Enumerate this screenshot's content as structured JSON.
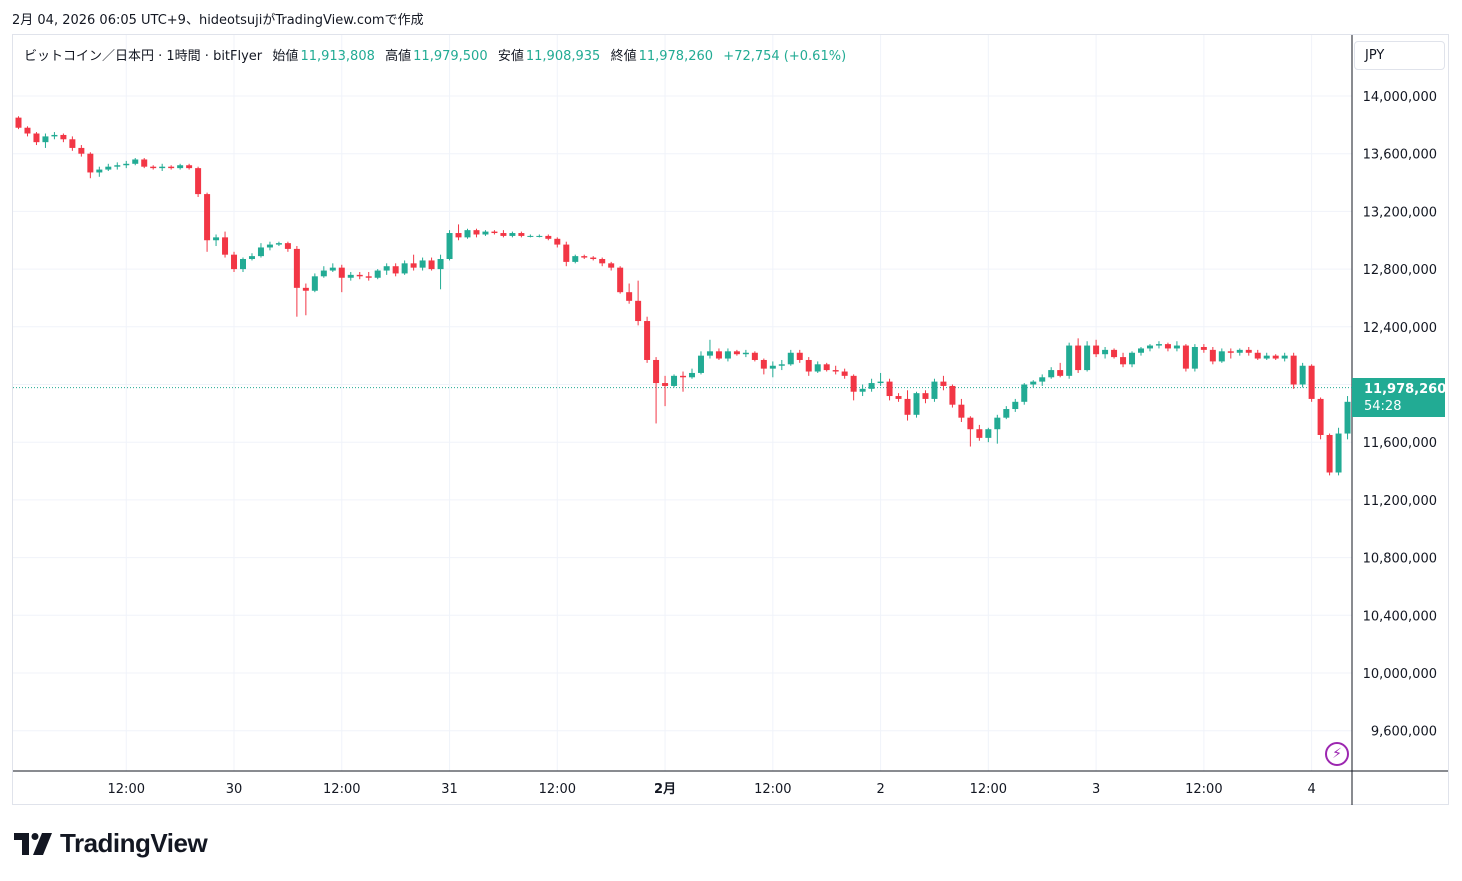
{
  "header": {
    "caption": "2月 04, 2026 06:05 UTC+9、hideotsujiがTradingView.comで作成"
  },
  "legend": {
    "symbol": "ビットコイン／日本円 · 1時間 · bitFlyer",
    "open_label": "始値",
    "open_value": "11,913,808",
    "high_label": "高値",
    "high_value": "11,979,500",
    "low_label": "安値",
    "low_value": "11,908,935",
    "close_label": "終値",
    "close_value": "11,978,260",
    "change": "+72,754 (+0.61%)"
  },
  "currency_button": "JPY",
  "last_price": {
    "price": "11,978,260",
    "countdown": "54:28"
  },
  "brand": {
    "name": "TradingView"
  },
  "colors": {
    "up": "#22ab94",
    "down": "#f23645",
    "grid": "#f0f3fa",
    "axis_text": "#131722",
    "last_line": "#22ab94",
    "alert": "#9c27b0"
  },
  "icons": {
    "alert": "lightning-icon",
    "logo": "tradingview-logo-icon"
  },
  "chart_data": {
    "type": "candlestick",
    "title": "ビットコイン／日本円 · 1時間 · bitFlyer",
    "ylim": [
      9300000,
      14600000
    ],
    "y_ticks": [
      14000000,
      13600000,
      13200000,
      12800000,
      12400000,
      12000000,
      11600000,
      11200000,
      10800000,
      10400000,
      10000000,
      9600000
    ],
    "y_tick_labels": [
      "14,000,000",
      "13,600,000",
      "13,200,000",
      "12,800,000",
      "12,400,000",
      "12,000,000",
      "11,600,000",
      "11,200,000",
      "10,800,000",
      "10,400,000",
      "10,000,000",
      "9,600,000"
    ],
    "x_ticks": [
      {
        "bar": 12,
        "label": "12:00",
        "bold": false
      },
      {
        "bar": 24,
        "label": "30",
        "bold": false
      },
      {
        "bar": 36,
        "label": "12:00",
        "bold": false
      },
      {
        "bar": 48,
        "label": "31",
        "bold": false
      },
      {
        "bar": 60,
        "label": "12:00",
        "bold": false
      },
      {
        "bar": 72,
        "label": "2月",
        "bold": true
      },
      {
        "bar": 84,
        "label": "12:00",
        "bold": false
      },
      {
        "bar": 96,
        "label": "2",
        "bold": false
      },
      {
        "bar": 108,
        "label": "12:00",
        "bold": false
      },
      {
        "bar": 120,
        "label": "3",
        "bold": false
      },
      {
        "bar": 132,
        "label": "12:00",
        "bold": false
      },
      {
        "bar": 144,
        "label": "4",
        "bold": false
      }
    ],
    "last_price": 11978260,
    "grid": true,
    "candles": [
      [
        13850000,
        13860000,
        13770000,
        13780000
      ],
      [
        13780000,
        13790000,
        13720000,
        13740000
      ],
      [
        13740000,
        13750000,
        13660000,
        13680000
      ],
      [
        13680000,
        13740000,
        13640000,
        13720000
      ],
      [
        13720000,
        13750000,
        13700000,
        13730000
      ],
      [
        13730000,
        13740000,
        13680000,
        13700000
      ],
      [
        13700000,
        13720000,
        13620000,
        13640000
      ],
      [
        13640000,
        13660000,
        13580000,
        13600000
      ],
      [
        13600000,
        13610000,
        13430000,
        13470000
      ],
      [
        13470000,
        13510000,
        13440000,
        13490000
      ],
      [
        13490000,
        13530000,
        13480000,
        13510000
      ],
      [
        13510000,
        13540000,
        13490000,
        13520000
      ],
      [
        13520000,
        13550000,
        13500000,
        13530000
      ],
      [
        13530000,
        13570000,
        13520000,
        13560000
      ],
      [
        13560000,
        13570000,
        13500000,
        13510000
      ],
      [
        13510000,
        13520000,
        13490000,
        13500000
      ],
      [
        13500000,
        13530000,
        13480000,
        13510000
      ],
      [
        13510000,
        13520000,
        13490000,
        13500000
      ],
      [
        13500000,
        13530000,
        13490000,
        13520000
      ],
      [
        13520000,
        13530000,
        13490000,
        13500000
      ],
      [
        13500000,
        13510000,
        13300000,
        13320000
      ],
      [
        13320000,
        13330000,
        12920000,
        13000000
      ],
      [
        13000000,
        13040000,
        12960000,
        13020000
      ],
      [
        13020000,
        13060000,
        12880000,
        12900000
      ],
      [
        12900000,
        12920000,
        12780000,
        12800000
      ],
      [
        12800000,
        12880000,
        12780000,
        12870000
      ],
      [
        12870000,
        12910000,
        12860000,
        12890000
      ],
      [
        12890000,
        12980000,
        12880000,
        12950000
      ],
      [
        12950000,
        12990000,
        12930000,
        12970000
      ],
      [
        12970000,
        12990000,
        12960000,
        12980000
      ],
      [
        12980000,
        12990000,
        12920000,
        12940000
      ],
      [
        12940000,
        12960000,
        12470000,
        12670000
      ],
      [
        12670000,
        12700000,
        12480000,
        12650000
      ],
      [
        12650000,
        12770000,
        12640000,
        12750000
      ],
      [
        12750000,
        12820000,
        12740000,
        12790000
      ],
      [
        12790000,
        12840000,
        12780000,
        12810000
      ],
      [
        12810000,
        12830000,
        12640000,
        12740000
      ],
      [
        12740000,
        12780000,
        12720000,
        12760000
      ],
      [
        12760000,
        12780000,
        12730000,
        12750000
      ],
      [
        12750000,
        12780000,
        12720000,
        12740000
      ],
      [
        12740000,
        12800000,
        12730000,
        12790000
      ],
      [
        12790000,
        12840000,
        12760000,
        12820000
      ],
      [
        12820000,
        12840000,
        12750000,
        12770000
      ],
      [
        12770000,
        12860000,
        12760000,
        12840000
      ],
      [
        12840000,
        12900000,
        12790000,
        12810000
      ],
      [
        12810000,
        12880000,
        12790000,
        12860000
      ],
      [
        12860000,
        12880000,
        12790000,
        12800000
      ],
      [
        12800000,
        12900000,
        12660000,
        12870000
      ],
      [
        12870000,
        13070000,
        12860000,
        13050000
      ],
      [
        13050000,
        13110000,
        13000000,
        13020000
      ],
      [
        13020000,
        13080000,
        13010000,
        13070000
      ],
      [
        13070000,
        13080000,
        13020000,
        13040000
      ],
      [
        13040000,
        13070000,
        13030000,
        13060000
      ],
      [
        13060000,
        13070000,
        13040000,
        13050000
      ],
      [
        13050000,
        13070000,
        13020000,
        13030000
      ],
      [
        13030000,
        13060000,
        13020000,
        13050000
      ],
      [
        13050000,
        13060000,
        13020000,
        13030000
      ],
      [
        13030000,
        13040000,
        13020000,
        13030000
      ],
      [
        13030000,
        13040000,
        13020000,
        13030000
      ],
      [
        13030000,
        13040000,
        13000000,
        13010000
      ],
      [
        13010000,
        13020000,
        12950000,
        12970000
      ],
      [
        12970000,
        12990000,
        12820000,
        12850000
      ],
      [
        12850000,
        12900000,
        12840000,
        12890000
      ],
      [
        12890000,
        12900000,
        12870000,
        12880000
      ],
      [
        12880000,
        12890000,
        12860000,
        12870000
      ],
      [
        12870000,
        12880000,
        12820000,
        12840000
      ],
      [
        12840000,
        12850000,
        12790000,
        12810000
      ],
      [
        12810000,
        12820000,
        12630000,
        12640000
      ],
      [
        12640000,
        12700000,
        12560000,
        12580000
      ],
      [
        12580000,
        12720000,
        12410000,
        12440000
      ],
      [
        12440000,
        12470000,
        12150000,
        12170000
      ],
      [
        12170000,
        12190000,
        11730000,
        12010000
      ],
      [
        12010000,
        12060000,
        11850000,
        11990000
      ],
      [
        11990000,
        12070000,
        11980000,
        12060000
      ],
      [
        12060000,
        12090000,
        11950000,
        12050000
      ],
      [
        12050000,
        12110000,
        12040000,
        12080000
      ],
      [
        12080000,
        12230000,
        12070000,
        12200000
      ],
      [
        12200000,
        12310000,
        12180000,
        12230000
      ],
      [
        12230000,
        12250000,
        12170000,
        12180000
      ],
      [
        12180000,
        12250000,
        12160000,
        12230000
      ],
      [
        12230000,
        12240000,
        12200000,
        12210000
      ],
      [
        12210000,
        12240000,
        12190000,
        12220000
      ],
      [
        12220000,
        12230000,
        12160000,
        12170000
      ],
      [
        12170000,
        12180000,
        12070000,
        12110000
      ],
      [
        12110000,
        12160000,
        12050000,
        12130000
      ],
      [
        12130000,
        12170000,
        12100000,
        12140000
      ],
      [
        12140000,
        12240000,
        12130000,
        12220000
      ],
      [
        12220000,
        12240000,
        12150000,
        12170000
      ],
      [
        12170000,
        12190000,
        12060000,
        12090000
      ],
      [
        12090000,
        12160000,
        12080000,
        12140000
      ],
      [
        12140000,
        12150000,
        12090000,
        12100000
      ],
      [
        12100000,
        12130000,
        12070000,
        12090000
      ],
      [
        12090000,
        12110000,
        12040000,
        12060000
      ],
      [
        12060000,
        12070000,
        11890000,
        11950000
      ],
      [
        11950000,
        12000000,
        11920000,
        11970000
      ],
      [
        11970000,
        12040000,
        11950000,
        12010000
      ],
      [
        12010000,
        12080000,
        11990000,
        12020000
      ],
      [
        12020000,
        12040000,
        11890000,
        11920000
      ],
      [
        11920000,
        11940000,
        11880000,
        11900000
      ],
      [
        11900000,
        11960000,
        11750000,
        11790000
      ],
      [
        11790000,
        11950000,
        11770000,
        11940000
      ],
      [
        11940000,
        11960000,
        11870000,
        11900000
      ],
      [
        11900000,
        12040000,
        11880000,
        12020000
      ],
      [
        12020000,
        12060000,
        11960000,
        11990000
      ],
      [
        11990000,
        12000000,
        11840000,
        11860000
      ],
      [
        11860000,
        11900000,
        11740000,
        11770000
      ],
      [
        11770000,
        11780000,
        11570000,
        11690000
      ],
      [
        11690000,
        11720000,
        11610000,
        11630000
      ],
      [
        11630000,
        11700000,
        11600000,
        11690000
      ],
      [
        11690000,
        11790000,
        11590000,
        11770000
      ],
      [
        11770000,
        11850000,
        11760000,
        11830000
      ],
      [
        11830000,
        11900000,
        11810000,
        11880000
      ],
      [
        11880000,
        12010000,
        11860000,
        12000000
      ],
      [
        12000000,
        12030000,
        11980000,
        12020000
      ],
      [
        12020000,
        12070000,
        11990000,
        12050000
      ],
      [
        12050000,
        12120000,
        12040000,
        12100000
      ],
      [
        12100000,
        12150000,
        12050000,
        12060000
      ],
      [
        12060000,
        12290000,
        12040000,
        12270000
      ],
      [
        12270000,
        12320000,
        12080000,
        12100000
      ],
      [
        12100000,
        12300000,
        12090000,
        12270000
      ],
      [
        12270000,
        12310000,
        12190000,
        12210000
      ],
      [
        12210000,
        12260000,
        12180000,
        12240000
      ],
      [
        12240000,
        12250000,
        12180000,
        12190000
      ],
      [
        12190000,
        12220000,
        12120000,
        12140000
      ],
      [
        12140000,
        12230000,
        12120000,
        12220000
      ],
      [
        12220000,
        12260000,
        12200000,
        12250000
      ],
      [
        12250000,
        12280000,
        12230000,
        12270000
      ],
      [
        12270000,
        12300000,
        12250000,
        12280000
      ],
      [
        12280000,
        12290000,
        12230000,
        12250000
      ],
      [
        12250000,
        12300000,
        12230000,
        12270000
      ],
      [
        12270000,
        12280000,
        12090000,
        12110000
      ],
      [
        12110000,
        12280000,
        12090000,
        12260000
      ],
      [
        12260000,
        12280000,
        12220000,
        12240000
      ],
      [
        12240000,
        12260000,
        12140000,
        12160000
      ],
      [
        12160000,
        12250000,
        12150000,
        12230000
      ],
      [
        12230000,
        12250000,
        12180000,
        12220000
      ],
      [
        12220000,
        12250000,
        12200000,
        12240000
      ],
      [
        12240000,
        12260000,
        12200000,
        12220000
      ],
      [
        12220000,
        12240000,
        12170000,
        12180000
      ],
      [
        12180000,
        12220000,
        12170000,
        12200000
      ],
      [
        12200000,
        12210000,
        12170000,
        12180000
      ],
      [
        12180000,
        12220000,
        12160000,
        12200000
      ],
      [
        12200000,
        12220000,
        11970000,
        12000000
      ],
      [
        12000000,
        12150000,
        11980000,
        12130000
      ],
      [
        12130000,
        12140000,
        11880000,
        11900000
      ],
      [
        11900000,
        11910000,
        11620000,
        11650000
      ],
      [
        11650000,
        11660000,
        11370000,
        11390000
      ],
      [
        11390000,
        11700000,
        11370000,
        11660000
      ],
      [
        11660000,
        11920000,
        11620000,
        11880000
      ],
      [
        11913808,
        11979500,
        11908935,
        11978260
      ]
    ]
  }
}
